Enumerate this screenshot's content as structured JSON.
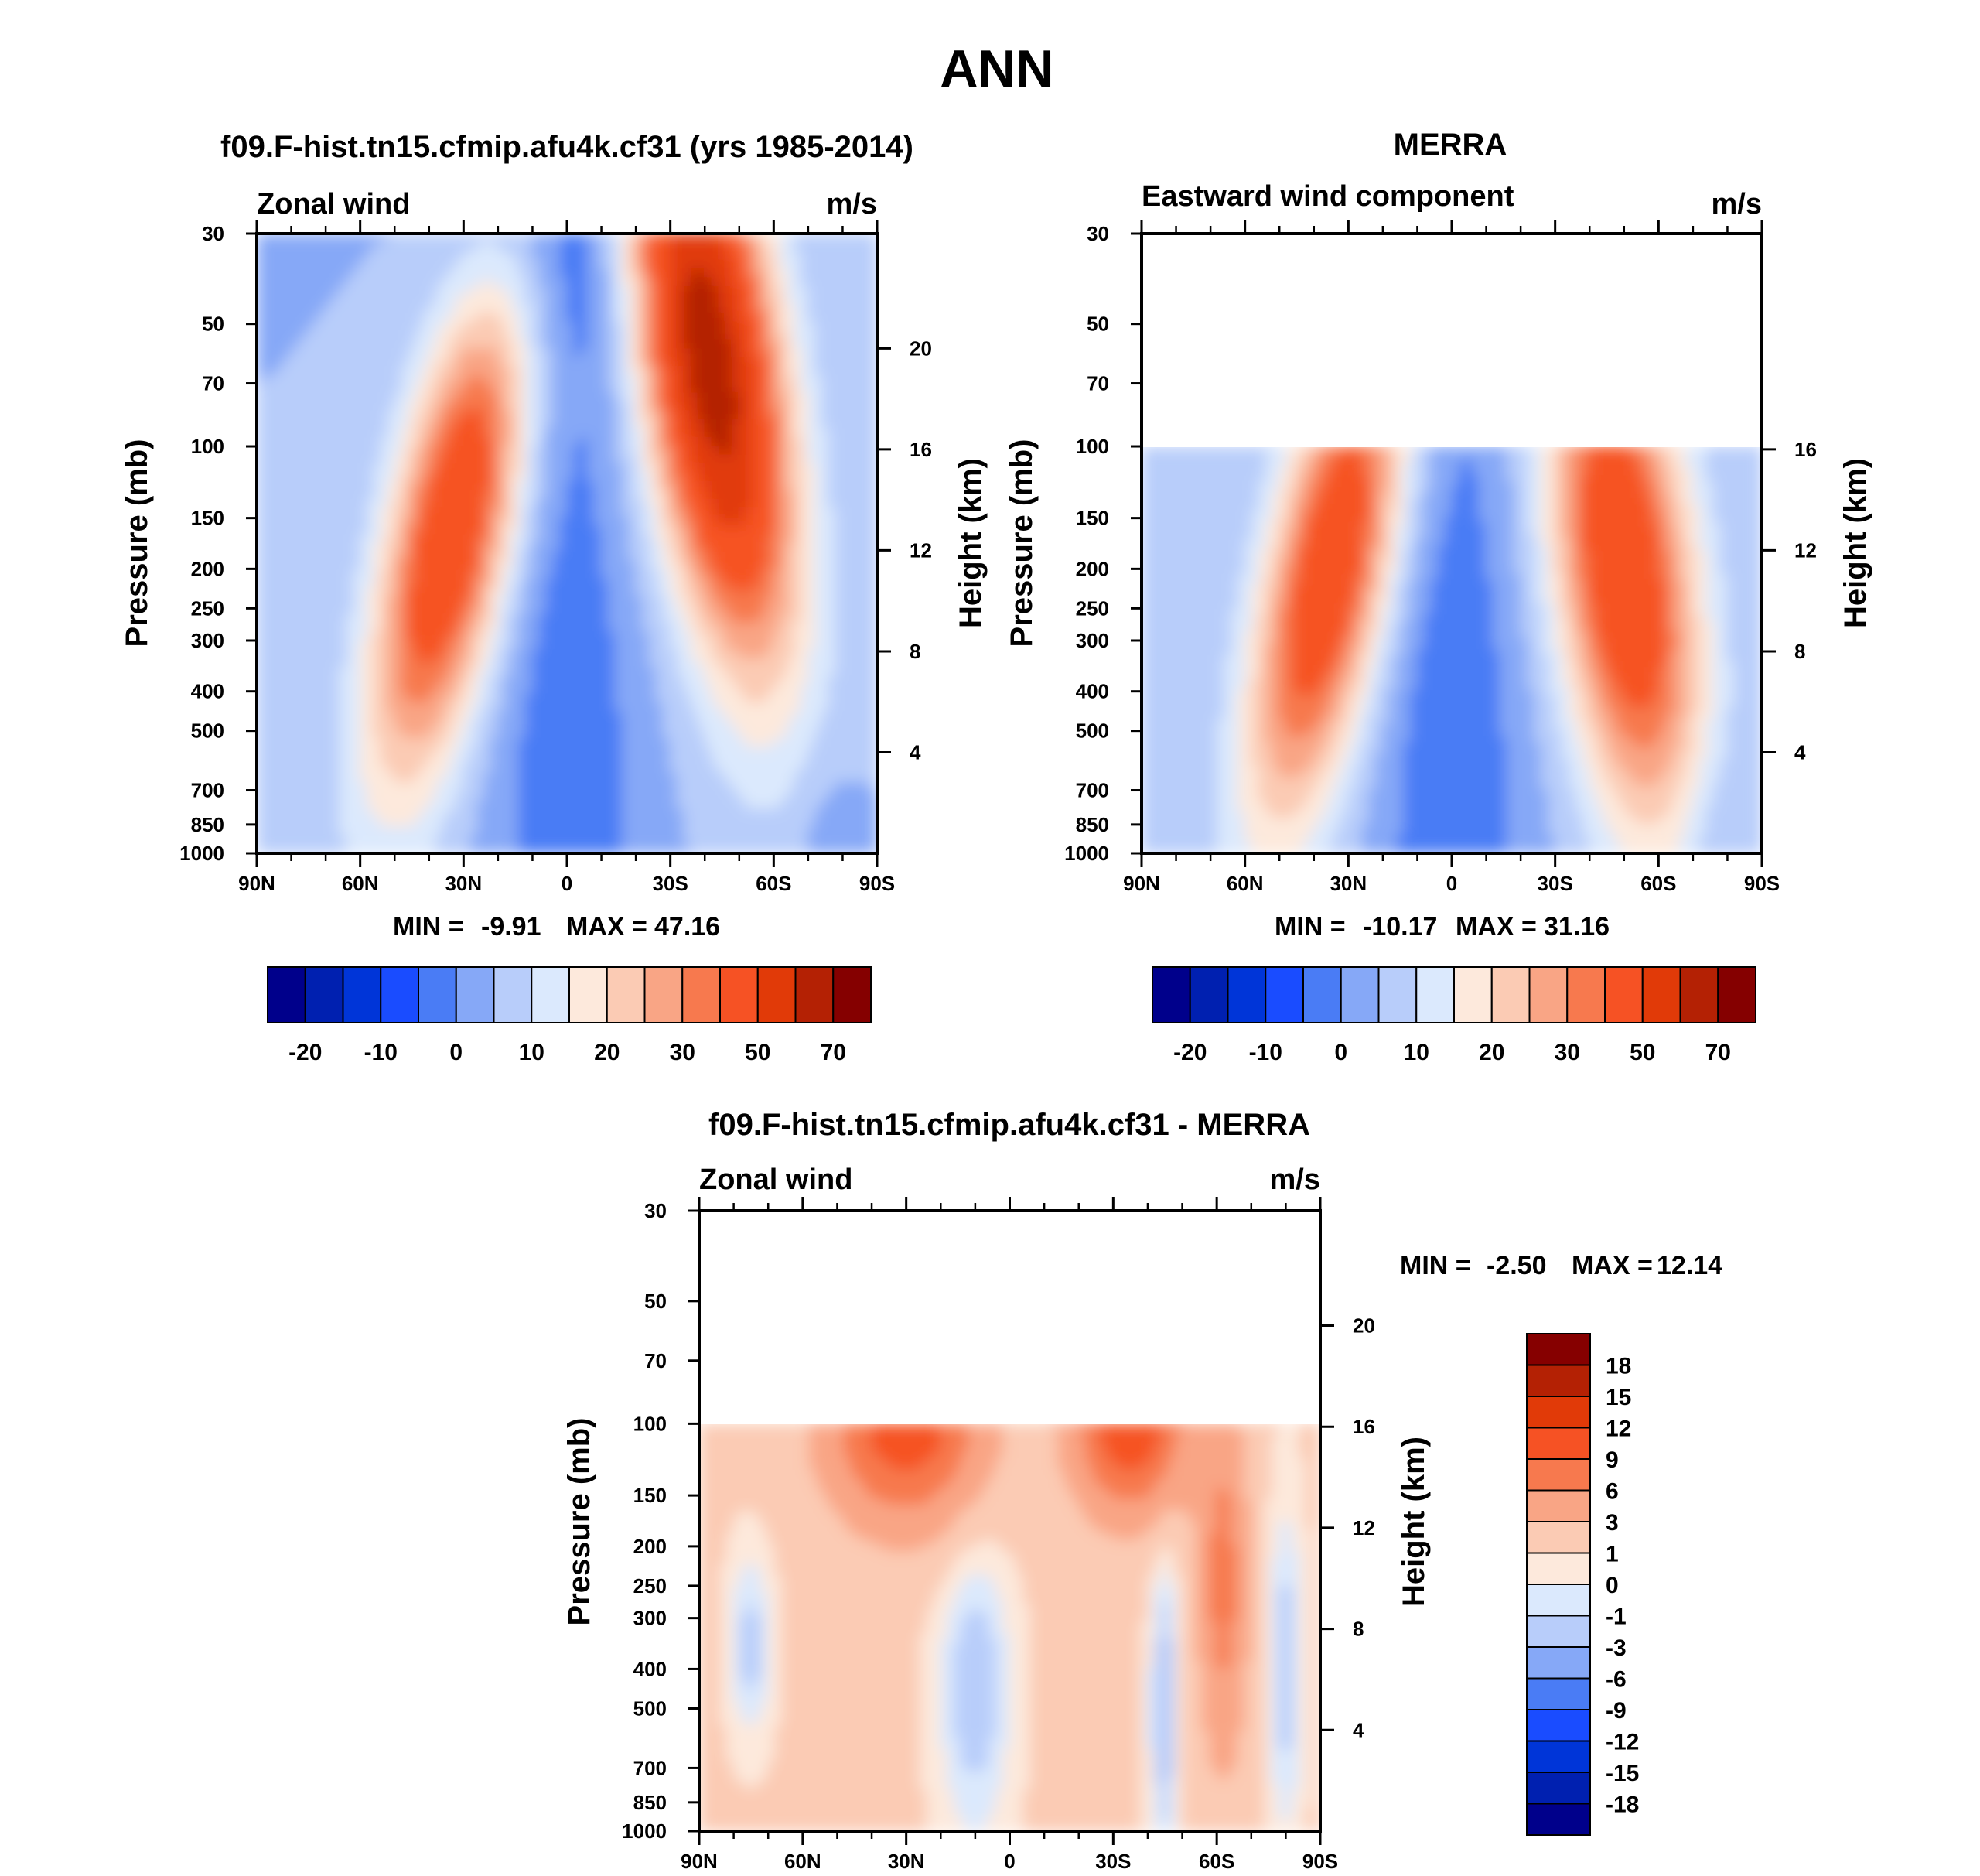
{
  "figure": {
    "title": "ANN"
  },
  "chart_data": [
    {
      "type": "contour",
      "panel": "model",
      "title": "f09.F-hist.tn15.cfmip.afu4k.cf31 (yrs 1985-2014)",
      "left_label": "Zonal wind",
      "right_label": "m/s",
      "x_ticks": [
        "90N",
        "60N",
        "30N",
        "0",
        "30S",
        "60S",
        "90S"
      ],
      "y_ticks": [
        "30",
        "50",
        "70",
        "100",
        "150",
        "200",
        "250",
        "300",
        "400",
        "500",
        "700",
        "850",
        "1000"
      ],
      "y_ticks_right": [
        "20",
        "16",
        "12",
        "8",
        "4"
      ],
      "ylabel": "Pressure (mb)",
      "ylabel_right": "Height (km)",
      "data_top_mb": 30,
      "min": -9.91,
      "max": 47.16,
      "min_label": "MIN =",
      "max_label": "MAX =",
      "min_text": "-9.91",
      "max_text": "47.16",
      "colorbar_labels": [
        "-20",
        "-10",
        "0",
        "10",
        "20",
        "30",
        "50",
        "70"
      ],
      "jets": [
        {
          "lat": 33,
          "p": 160,
          "peak": 31
        },
        {
          "lat": -45,
          "p": 60,
          "peak": 47
        }
      ],
      "easterly_min": -9.9
    },
    {
      "type": "contour",
      "panel": "obs",
      "title": "MERRA",
      "left_label": "Eastward wind component",
      "right_label": "m/s",
      "x_ticks": [
        "90N",
        "60N",
        "30N",
        "0",
        "30S",
        "60S",
        "90S"
      ],
      "y_ticks": [
        "30",
        "50",
        "70",
        "100",
        "150",
        "200",
        "250",
        "300",
        "400",
        "500",
        "700",
        "850",
        "1000"
      ],
      "y_ticks_right": [
        "16",
        "12",
        "8",
        "4"
      ],
      "ylabel": "Pressure (mb)",
      "ylabel_right": "Height (km)",
      "data_top_mb": 100,
      "min": -10.17,
      "max": 31.16,
      "min_label": "MIN =",
      "max_label": "MAX =",
      "min_text": "-10.17",
      "max_text": "31.16",
      "colorbar_labels": [
        "-20",
        "-10",
        "0",
        "10",
        "20",
        "30",
        "50",
        "70"
      ],
      "jets": [
        {
          "lat": 35,
          "p": 200,
          "peak": 30
        },
        {
          "lat": -50,
          "p": 200,
          "peak": 31
        }
      ],
      "easterly_min": -10.2
    },
    {
      "type": "contour",
      "panel": "difference",
      "title": "f09.F-hist.tn15.cfmip.afu4k.cf31 - MERRA",
      "left_label": "Zonal wind",
      "right_label": "m/s",
      "x_ticks": [
        "90N",
        "60N",
        "30N",
        "0",
        "30S",
        "60S",
        "90S"
      ],
      "y_ticks": [
        "30",
        "50",
        "70",
        "100",
        "150",
        "200",
        "250",
        "300",
        "400",
        "500",
        "700",
        "850",
        "1000"
      ],
      "y_ticks_right": [
        "20",
        "16",
        "12",
        "8",
        "4"
      ],
      "ylabel": "Pressure (mb)",
      "ylabel_right": "Height (km)",
      "data_top_mb": 100,
      "min": -2.5,
      "max": 12.14,
      "min_label": "MIN =",
      "max_label": "MAX =",
      "min_text": "-2.50",
      "max_text": "12.14",
      "colorbar_labels": [
        "18",
        "15",
        "12",
        "9",
        "6",
        "3",
        "1",
        "0",
        "-1",
        "-3",
        "-6",
        "-9",
        "-12",
        "-15",
        "-18"
      ]
    }
  ],
  "colors": {
    "main_levels": [
      "#00008b",
      "#0020b0",
      "#0035d8",
      "#1a4cff",
      "#4a7cf5",
      "#86a8f7",
      "#b8cdfa",
      "#dbe9fd",
      "#fde9dc",
      "#fbcbb4",
      "#f9a585",
      "#f7794e",
      "#f65224",
      "#e13a08",
      "#b42104",
      "#850000"
    ],
    "diff_levels": [
      "#860000",
      "#b42104",
      "#e13a08",
      "#f65224",
      "#f7794e",
      "#f9a585",
      "#fbcbb4",
      "#fde9dc",
      "#dbe9fd",
      "#b8cdfa",
      "#86a8f7",
      "#4a7cf5",
      "#1a4cff",
      "#0035d8",
      "#0020b0",
      "#00008b"
    ]
  }
}
